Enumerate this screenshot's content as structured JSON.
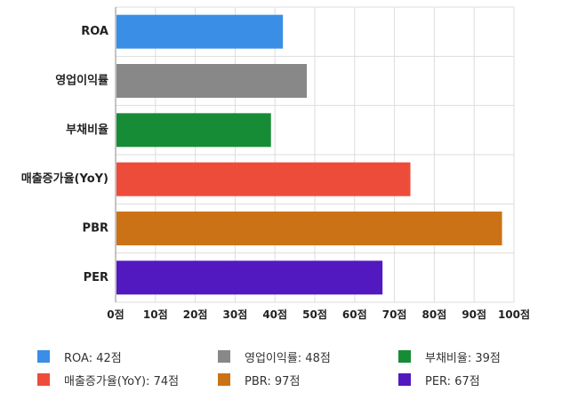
{
  "chart_data": {
    "type": "bar",
    "orientation": "horizontal",
    "categories": [
      "ROA",
      "영업이익률",
      "부채비율",
      "매출증가율(YoY)",
      "PBR",
      "PER"
    ],
    "values": [
      42,
      48,
      39,
      74,
      97,
      67
    ],
    "colors": [
      "#3a8ee6",
      "#888888",
      "#178c36",
      "#ee4c3a",
      "#cc7216",
      "#5219c0"
    ],
    "xlim": [
      0,
      100
    ],
    "xticks": [
      0,
      10,
      20,
      30,
      40,
      50,
      60,
      70,
      80,
      90,
      100
    ],
    "tick_suffix": "점",
    "grid": true,
    "legend_position": "bottom",
    "legend": [
      {
        "label": "ROA: 42점",
        "color": "#3a8ee6"
      },
      {
        "label": "영업이익률: 48점",
        "color": "#888888"
      },
      {
        "label": "부채비율: 39점",
        "color": "#178c36"
      },
      {
        "label": "매출증가율(YoY): 74점",
        "color": "#ee4c3a"
      },
      {
        "label": "PBR: 97점",
        "color": "#cc7216"
      },
      {
        "label": "PER: 67점",
        "color": "#5219c0"
      }
    ]
  }
}
